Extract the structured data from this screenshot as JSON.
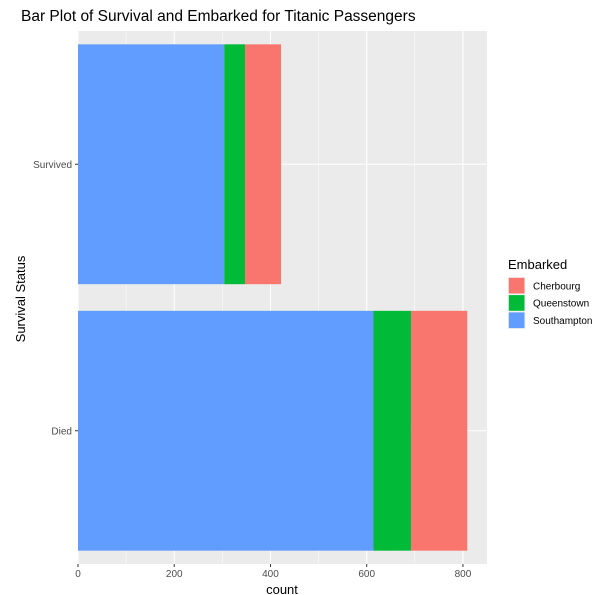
{
  "chart_data": {
    "type": "bar",
    "orientation": "horizontal",
    "stacked": true,
    "title": "Bar Plot of Survival and Embarked for Titanic Passengers",
    "xlabel": "count",
    "ylabel": "Survival Status",
    "categories": [
      "Died",
      "Survived"
    ],
    "series": [
      {
        "name": "Cherbourg",
        "color": "#F8766D",
        "values": [
          117,
          75
        ]
      },
      {
        "name": "Queenstown",
        "color": "#00BA38",
        "values": [
          78,
          43
        ]
      },
      {
        "name": "Southampton",
        "color": "#619CFF",
        "values": [
          614,
          304
        ]
      }
    ],
    "stack_order_from_zero": [
      "Southampton",
      "Queenstown",
      "Cherbourg"
    ],
    "xlim": [
      0,
      850
    ],
    "xticks": [
      0,
      200,
      400,
      600,
      800
    ],
    "legend": {
      "title": "Embarked",
      "position": "right"
    },
    "grid": true,
    "panel_background": "#EBEBEB",
    "grid_color": "#FFFFFF"
  }
}
